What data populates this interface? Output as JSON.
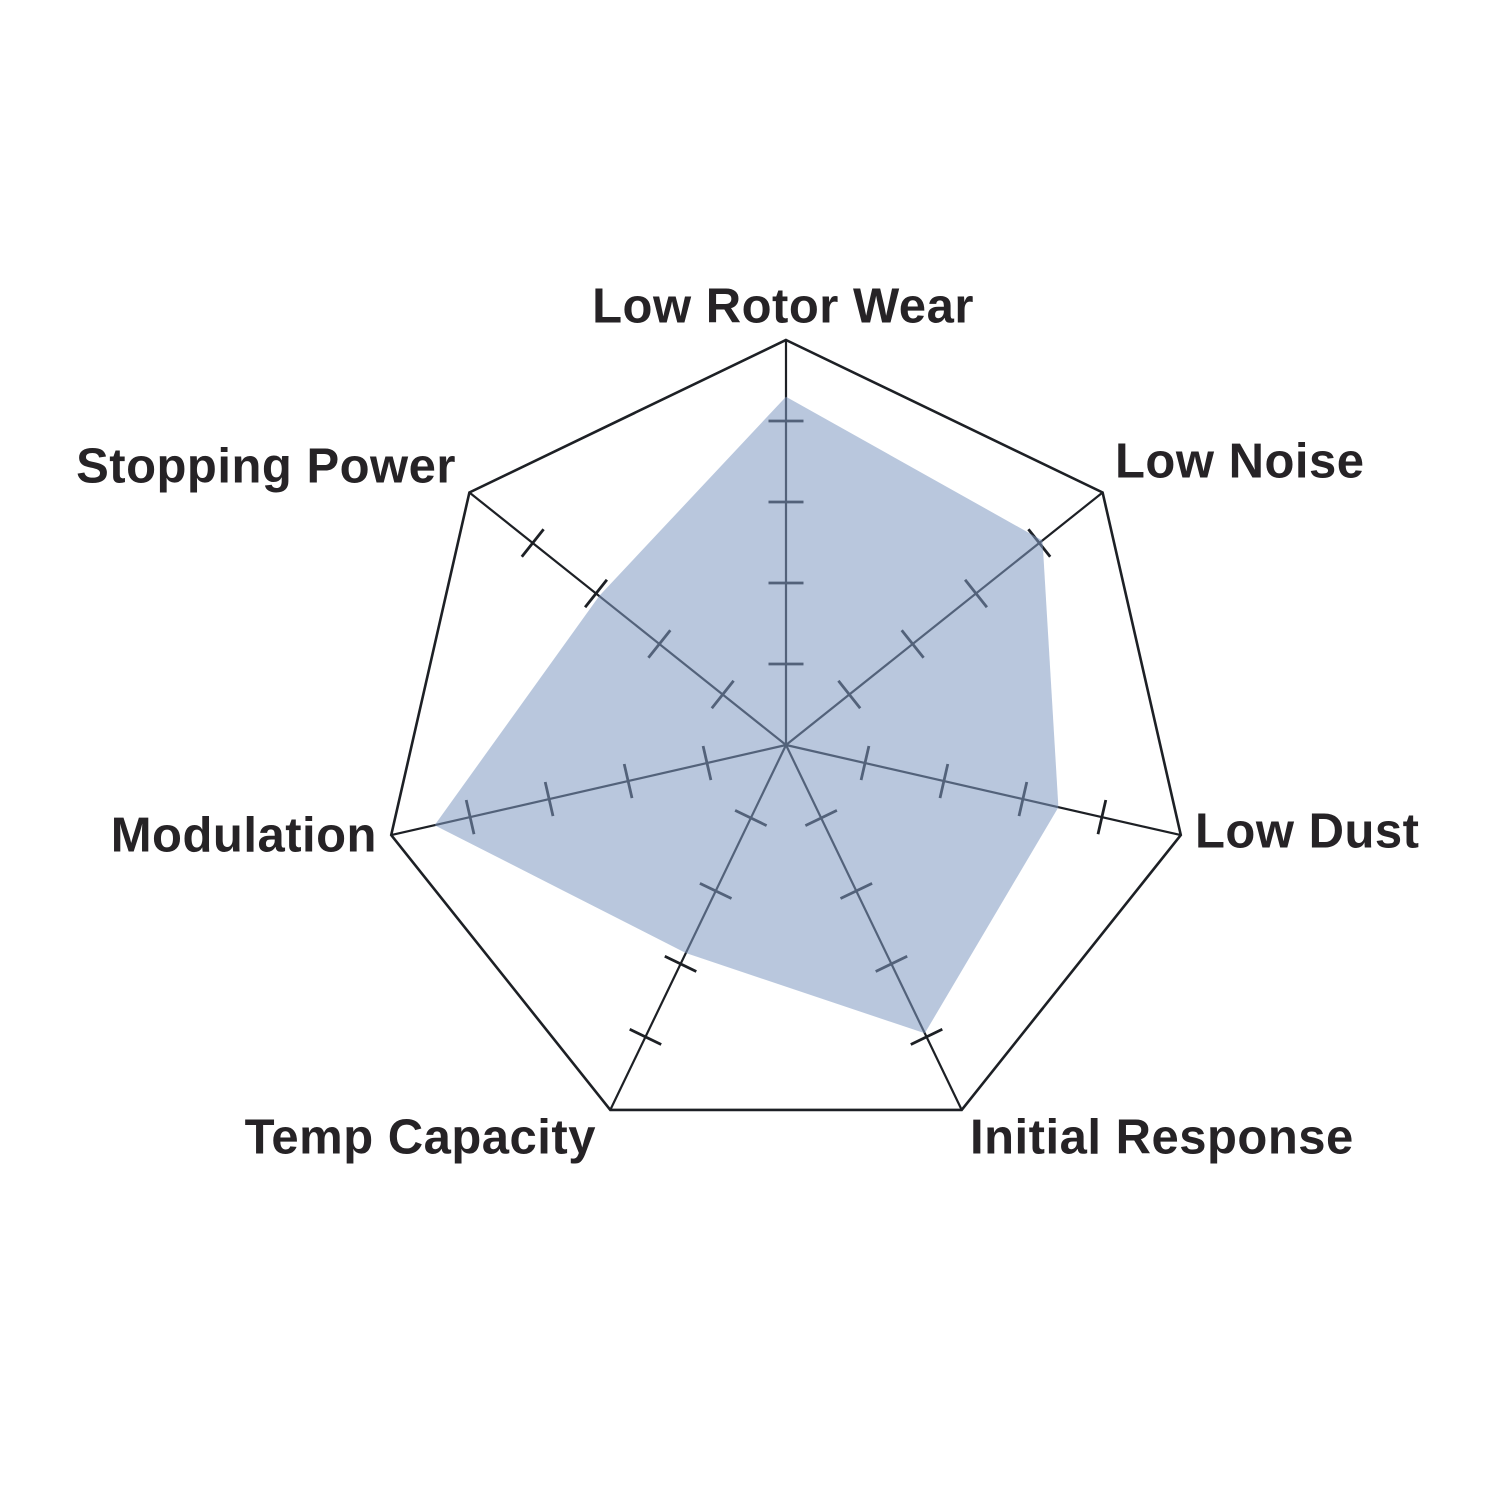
{
  "chart_data": {
    "type": "radar",
    "categories": [
      "Low Rotor Wear",
      "Low Noise",
      "Low Dust",
      "Initial Response",
      "Temp Capacity",
      "Modulation",
      "Stopping Power"
    ],
    "values": [
      4.3,
      4.05,
      3.45,
      3.95,
      2.85,
      4.45,
      2.95
    ],
    "scale_max": 5,
    "tick_interval": 1,
    "axis_order": "clockwise from top",
    "title": "",
    "legend": "none",
    "grid": "seven spokes with perpendicular tick marks at 1-4, single outer heptagon ring, no inner rings",
    "fill_color": "rgba(127,153,193,0.55)",
    "line_color": "#1d2025",
    "label_color": "#262326",
    "background_color": "#ffffff"
  }
}
